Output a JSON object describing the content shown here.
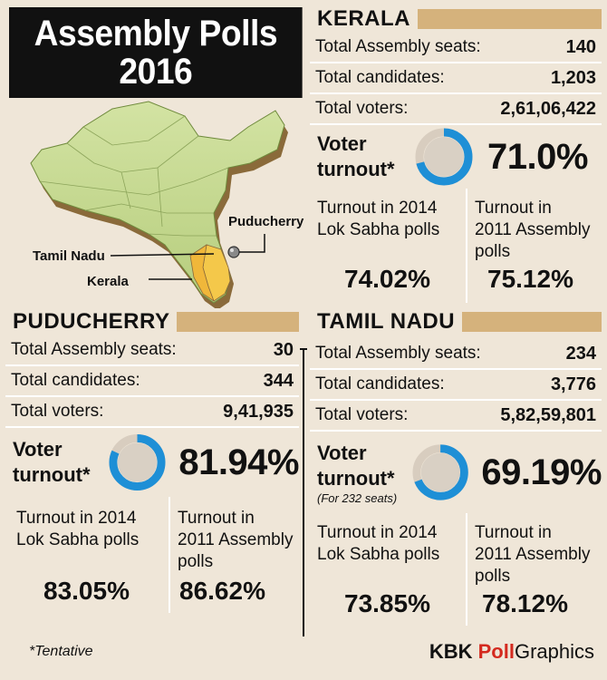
{
  "title": {
    "line1": "Assembly Polls",
    "line2": "2016"
  },
  "labels": {
    "seats": "Total Assembly seats:",
    "candidates": "Total candidates:",
    "voters": "Total voters:",
    "voter": "Voter",
    "turnout": "turnout*",
    "lok_line1": "Turnout in 2014",
    "lok_line2": "Lok Sabha polls",
    "assembly_line1": "Turnout in",
    "assembly_line2": "2011 Assembly",
    "assembly_line3": "polls"
  },
  "map_labels": {
    "puducherry": "Puducherry",
    "tamil_nadu": "Tamil Nadu",
    "kerala": "Kerala"
  },
  "kerala": {
    "name": "KERALA",
    "seats": "140",
    "candidates": "1,203",
    "voters": "2,61,06,422",
    "turnout": "71.0%",
    "turnout_pct": 71.0,
    "lok_2014": "74.02%",
    "assembly_2011": "75.12%"
  },
  "puducherry": {
    "name": "PUDUCHERRY",
    "seats": "30",
    "candidates": "344",
    "voters": "9,41,935",
    "turnout": "81.94%",
    "turnout_pct": 81.94,
    "lok_2014": "83.05%",
    "assembly_2011": "86.62%"
  },
  "tamil_nadu": {
    "name": "TAMIL NADU",
    "seats": "234",
    "candidates": "3,776",
    "voters": "5,82,59,801",
    "turnout": "69.19%",
    "turnout_pct": 69.19,
    "turnout_note": "(For 232 seats)",
    "lok_2014": "73.85%",
    "assembly_2011": "78.12%"
  },
  "footer": {
    "note": "*Tentative",
    "credit_kbk": "KBK ",
    "credit_poll": "Poll",
    "credit_graphics": "Graphics"
  },
  "colors": {
    "ring_fill": "#1e8fd6",
    "ring_empty": "#d8cdbf",
    "ring_center": "#d9d0c4",
    "section_bar": "#d5b27c",
    "map_land": "#c5d992",
    "map_highlight": "#f4c84a",
    "brand_red": "#d42a1f"
  }
}
